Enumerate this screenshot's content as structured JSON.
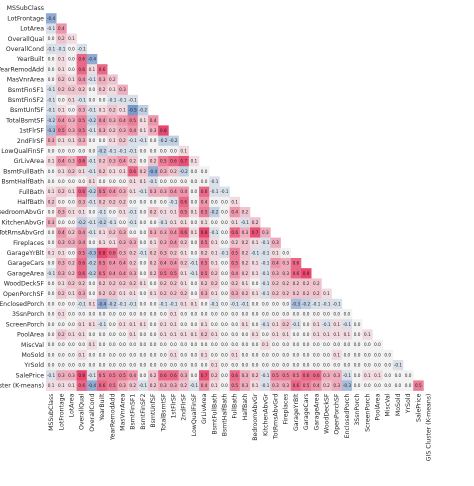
{
  "chart_data": {
    "type": "heatmap",
    "title": "",
    "xlabel": "",
    "ylabel": "",
    "value_range": [
      -1,
      1
    ],
    "colormap": {
      "negative": "#3a6fb8",
      "neutral": "#f2f2f2",
      "positive": "#e8476e"
    },
    "grid": false,
    "legend": "none",
    "labels": [
      "MSSubClass",
      "LotFrontage",
      "LotArea",
      "OverallQual",
      "OverallCond",
      "YearBuilt",
      "YearRemodAdd",
      "MasVnrArea",
      "BsmtFinSF1",
      "BsmtFinSF2",
      "BsmtUnfSF",
      "TotalBsmtSF",
      "1stFlrSF",
      "2ndFlrSF",
      "LowQualFinSF",
      "GrLivArea",
      "BsmtFullBath",
      "BsmtHalfBath",
      "FullBath",
      "HalfBath",
      "BedroomAbvGr",
      "KitchenAbvGr",
      "TotRmsAbvGrd",
      "Fireplaces",
      "GarageYrBlt",
      "GarageCars",
      "GarageArea",
      "WoodDeckSF",
      "OpenPorchSF",
      "EnclosedPorch",
      "3SsnPorch",
      "ScreenPorch",
      "PoolArea",
      "MiscVal",
      "MoSold",
      "YrSold",
      "SalePrice",
      "Cluster (K-means)"
    ],
    "row_labels": [
      "MSSubClass",
      "LotFrontage",
      "LotArea",
      "OverallQual",
      "OverallCond",
      "YearBuilt",
      "YearRemodAdd",
      "MasVnrArea",
      "BsmtFinSF1",
      "BsmtFinSF2",
      "BsmtUnfSF",
      "TotalBsmtSF",
      "1stFlrSF",
      "2ndFlrSF",
      "LowQualFinSF",
      "GrLivArea",
      "BsmtFullBath",
      "BsmtHalfBath",
      "FullBath",
      "HalfBath",
      "BedroomAbvGr",
      "KitchenAbvGr",
      "TotRmsAbvGrd",
      "Fireplaces",
      "GarageYrBlt",
      "GarageCars",
      "GarageArea",
      "WoodDeckSF",
      "OpenPorchSF",
      "EnclosedPorch",
      "3SsnPorch",
      "ScreenPorch",
      "PoolArea",
      "MiscVal",
      "MoSold",
      "YrSold",
      "SalePrice",
      "uster (K-means)"
    ],
    "col_labels": [
      "MSSubClass",
      "LotFrontage",
      "LotArea",
      "OverallQual",
      "OverallCond",
      "YearBuilt",
      "YearRemodAdd",
      "MasVnrArea",
      "BsmtFinSF1",
      "BsmtFinSF2",
      "BsmtUnfSF",
      "TotalBsmtSF",
      "1stFlrSF",
      "2ndFlrSF",
      "LowQualFinSF",
      "GrLivArea",
      "BsmtFullBath",
      "BsmtHalfBath",
      "FullBath",
      "HalfBath",
      "BedroomAbvGr",
      "KitchenAbvGr",
      "TotRmsAbvGrd",
      "Fireplaces",
      "GarageYrBlt",
      "GarageCars",
      "GarageArea",
      "WoodDeckSF",
      "OpenPorchSF",
      "EnclosedPorch",
      "3SsnPorch",
      "ScreenPorch",
      "PoolArea",
      "MiscVal",
      "MoSold",
      "YrSold",
      "SalePrice",
      "GIS Cluster (K-means)"
    ],
    "matrix": [
      [],
      [
        -0.4
      ],
      [
        -0.1,
        0.4
      ],
      [
        0.0,
        0.2,
        0.1
      ],
      [
        -0.1,
        -0.1,
        -0.0,
        -0.1
      ],
      [
        0.0,
        0.1,
        0.0,
        0.6,
        -0.4
      ],
      [
        0.0,
        0.1,
        0.0,
        0.6,
        0.1,
        0.6
      ],
      [
        0.0,
        0.2,
        0.1,
        0.4,
        -0.1,
        0.3,
        0.2
      ],
      [
        -0.1,
        0.2,
        0.2,
        0.2,
        -0.0,
        0.2,
        0.1,
        0.3
      ],
      [
        -0.1,
        0.0,
        0.1,
        -0.1,
        0.0,
        -0.0,
        -0.1,
        -0.1,
        -0.1
      ],
      [
        -0.1,
        0.1,
        -0.0,
        0.3,
        -0.1,
        0.1,
        0.2,
        0.1,
        -0.5,
        -0.2
      ],
      [
        -0.2,
        0.4,
        0.3,
        0.5,
        -0.2,
        0.4,
        0.3,
        0.4,
        0.5,
        0.1,
        0.4
      ],
      [
        -0.3,
        0.5,
        0.3,
        0.5,
        -0.1,
        0.3,
        0.2,
        0.3,
        0.4,
        0.1,
        0.3,
        0.8
      ],
      [
        0.3,
        0.1,
        0.1,
        0.3,
        0.0,
        0.0,
        0.1,
        0.2,
        -0.1,
        -0.1,
        0.0,
        -0.2,
        -0.2
      ],
      [
        0.0,
        0.0,
        0.0,
        -0.0,
        0.0,
        -0.2,
        -0.1,
        -0.1,
        -0.1,
        0.0,
        0.0,
        -0.0,
        -0.0,
        0.1
      ],
      [
        0.1,
        0.4,
        0.3,
        0.6,
        -0.1,
        0.2,
        0.3,
        0.4,
        0.2,
        -0.0,
        0.2,
        0.5,
        0.6,
        0.7,
        0.1
      ],
      [
        0.0,
        0.1,
        0.2,
        0.1,
        -0.1,
        0.2,
        0.1,
        0.1,
        0.6,
        0.2,
        -0.4,
        0.3,
        0.2,
        -0.2,
        -0.0,
        0.0
      ],
      [
        -0.0,
        -0.0,
        0.0,
        -0.0,
        0.1,
        -0.0,
        -0.0,
        0.0,
        0.1,
        0.1,
        -0.1,
        0.0,
        0.0,
        -0.0,
        -0.0,
        -0.0,
        -0.1
      ],
      [
        0.1,
        0.2,
        0.1,
        0.6,
        -0.2,
        0.5,
        0.4,
        0.3,
        0.1,
        -0.1,
        0.3,
        0.3,
        0.4,
        0.4,
        -0.0,
        0.6,
        -0.1,
        -0.1
      ],
      [
        0.2,
        0.0,
        0.0,
        0.3,
        -0.1,
        0.2,
        0.2,
        0.2,
        0.0,
        -0.0,
        -0.0,
        -0.0,
        -0.1,
        0.6,
        -0.0,
        0.4,
        -0.0,
        -0.0,
        0.1
      ],
      [
        -0.0,
        0.3,
        0.1,
        0.1,
        0.0,
        -0.1,
        -0.0,
        0.1,
        -0.1,
        -0.0,
        0.2,
        0.1,
        0.1,
        0.5,
        0.1,
        0.5,
        -0.2,
        0.0,
        0.4,
        0.2
      ],
      [
        0.3,
        -0.0,
        -0.0,
        -0.2,
        -0.1,
        -0.2,
        -0.1,
        -0.0,
        -0.1,
        -0.0,
        0.0,
        -0.1,
        0.1,
        0.1,
        0.0,
        0.1,
        -0.0,
        -0.0,
        0.1,
        -0.1,
        0.2
      ],
      [
        0.0,
        0.4,
        0.2,
        0.4,
        -0.1,
        0.1,
        0.2,
        0.3,
        0.0,
        -0.0,
        0.3,
        0.3,
        0.4,
        0.6,
        0.1,
        0.8,
        -0.1,
        -0.0,
        0.6,
        0.3,
        0.7,
        0.3
      ],
      [
        -0.0,
        0.3,
        0.3,
        0.4,
        -0.0,
        0.1,
        0.1,
        0.3,
        0.3,
        0.0,
        0.1,
        0.3,
        0.4,
        0.2,
        0.0,
        0.5,
        0.1,
        0.0,
        0.2,
        0.2,
        0.1,
        -0.1,
        0.3
      ],
      [
        0.1,
        0.1,
        -0.0,
        0.5,
        -0.3,
        0.8,
        0.6,
        0.3,
        0.2,
        -0.1,
        0.2,
        0.3,
        0.2,
        0.1,
        -0.0,
        0.2,
        0.1,
        -0.1,
        0.5,
        0.2,
        -0.1,
        -0.1,
        0.1,
        0.0
      ],
      [
        -0.0,
        0.3,
        0.2,
        0.6,
        -0.2,
        0.5,
        0.4,
        0.4,
        0.2,
        -0.0,
        0.2,
        0.4,
        0.4,
        0.2,
        -0.1,
        0.5,
        0.1,
        -0.0,
        0.5,
        0.2,
        0.1,
        -0.1,
        0.4,
        0.3,
        0.6
      ],
      [
        -0.1,
        0.3,
        0.2,
        0.6,
        -0.2,
        0.5,
        0.4,
        0.4,
        0.3,
        -0.0,
        0.2,
        0.5,
        0.5,
        0.1,
        -0.1,
        0.5,
        0.2,
        -0.0,
        0.4,
        0.2,
        0.1,
        -0.1,
        0.3,
        0.3,
        0.6,
        0.9
      ],
      [
        -0.0,
        0.1,
        0.2,
        0.2,
        -0.0,
        0.2,
        0.2,
        0.2,
        0.2,
        0.1,
        -0.0,
        0.2,
        0.2,
        0.1,
        -0.0,
        0.2,
        0.2,
        0.0,
        0.2,
        0.1,
        0.0,
        -0.1,
        0.2,
        0.2,
        0.2,
        0.2,
        0.2
      ],
      [
        -0.0,
        0.2,
        0.1,
        0.3,
        -0.0,
        0.2,
        0.2,
        0.1,
        0.1,
        0.0,
        0.1,
        0.2,
        0.2,
        0.2,
        0.0,
        0.3,
        0.1,
        -0.0,
        0.3,
        0.2,
        0.1,
        -0.1,
        0.2,
        0.2,
        0.2,
        0.2,
        0.2,
        0.1
      ],
      [
        -0.0,
        0.0,
        -0.0,
        -0.1,
        0.1,
        -0.4,
        -0.2,
        -0.1,
        -0.1,
        0.0,
        -0.0,
        -0.1,
        -0.1,
        0.1,
        0.1,
        0.0,
        -0.1,
        -0.0,
        -0.1,
        -0.1,
        0.0,
        0.0,
        0.0,
        -0.0,
        -0.3,
        -0.2,
        -0.1,
        -0.1,
        -0.1
      ],
      [
        -0.0,
        0.1,
        0.0,
        0.0,
        0.0,
        0.0,
        0.0,
        0.0,
        0.0,
        -0.0,
        0.0,
        0.0,
        0.1,
        -0.0,
        -0.0,
        0.0,
        0.0,
        0.0,
        0.0,
        -0.0,
        -0.0,
        -0.0,
        -0.0,
        0.0,
        0.0,
        0.0,
        0.0,
        -0.0,
        0.0,
        -0.0
      ],
      [
        -0.0,
        0.0,
        0.0,
        0.1,
        0.1,
        -0.1,
        -0.0,
        0.1,
        0.1,
        0.1,
        -0.0,
        0.1,
        0.1,
        0.0,
        0.0,
        0.1,
        0.0,
        0.0,
        -0.0,
        0.1,
        0.0,
        -0.1,
        0.1,
        0.2,
        -0.1,
        0.0,
        0.1,
        -0.1,
        0.1,
        -0.1,
        -0.0
      ],
      [
        0.0,
        0.2,
        0.1,
        0.1,
        -0.0,
        0.0,
        0.0,
        0.0,
        0.1,
        0.0,
        -0.0,
        0.1,
        0.1,
        0.1,
        0.1,
        0.2,
        0.1,
        0.0,
        0.0,
        0.0,
        0.1,
        -0.0,
        0.1,
        0.1,
        -0.0,
        0.0,
        0.1,
        0.1,
        0.1,
        0.1,
        -0.0,
        0.1
      ],
      [
        -0.0,
        0.0,
        0.0,
        -0.0,
        0.1,
        -0.0,
        -0.0,
        -0.0,
        0.0,
        0.0,
        -0.0,
        -0.0,
        -0.0,
        0.0,
        -0.0,
        -0.0,
        -0.0,
        -0.0,
        -0.0,
        0.0,
        0.0,
        0.1,
        0.0,
        0.0,
        -0.0,
        -0.0,
        -0.0,
        -0.0,
        -0.0,
        0.0,
        0.0,
        0.0,
        0.0
      ],
      [
        -0.0,
        0.0,
        0.0,
        0.1,
        -0.0,
        0.0,
        0.0,
        -0.0,
        -0.0,
        -0.0,
        0.0,
        0.0,
        0.1,
        0.0,
        -0.0,
        0.1,
        -0.0,
        0.0,
        0.1,
        -0.0,
        0.0,
        0.0,
        0.0,
        0.0,
        0.0,
        0.0,
        0.0,
        0.0,
        0.1,
        -0.0,
        0.0,
        0.0,
        -0.0,
        -0.0
      ],
      [
        -0.0,
        0.0,
        -0.0,
        -0.0,
        0.0,
        -0.0,
        0.0,
        -0.0,
        0.0,
        -0.0,
        -0.0,
        -0.0,
        -0.0,
        -0.0,
        -0.0,
        -0.0,
        0.1,
        -0.0,
        -0.0,
        -0.0,
        -0.0,
        0.0,
        -0.0,
        -0.0,
        -0.0,
        -0.0,
        -0.0,
        0.0,
        -0.0,
        -0.0,
        0.0,
        0.0,
        -0.0,
        0.0,
        -0.1
      ],
      [
        -0.1,
        0.3,
        0.3,
        0.8,
        -0.1,
        0.5,
        0.5,
        0.5,
        0.4,
        -0.0,
        0.2,
        0.6,
        0.6,
        0.3,
        -0.0,
        0.7,
        0.2,
        -0.0,
        0.6,
        0.3,
        0.2,
        -0.1,
        0.5,
        0.5,
        0.5,
        0.6,
        0.6,
        0.3,
        0.3,
        -0.1,
        0.0,
        0.1,
        0.1,
        -0.0,
        0.0,
        -0.0
      ],
      [
        0.1,
        0.1,
        0.1,
        0.6,
        -0.4,
        0.6,
        0.5,
        0.3,
        0.2,
        -0.1,
        0.2,
        0.3,
        0.3,
        0.2,
        -0.1,
        0.4,
        0.1,
        -0.0,
        0.5,
        0.3,
        0.1,
        -0.1,
        0.3,
        0.3,
        0.6,
        0.5,
        0.4,
        0.2,
        0.3,
        -0.3,
        0.0,
        -0.0,
        0.0,
        -0.0,
        0.0,
        -0.0,
        0.5
      ]
    ]
  }
}
